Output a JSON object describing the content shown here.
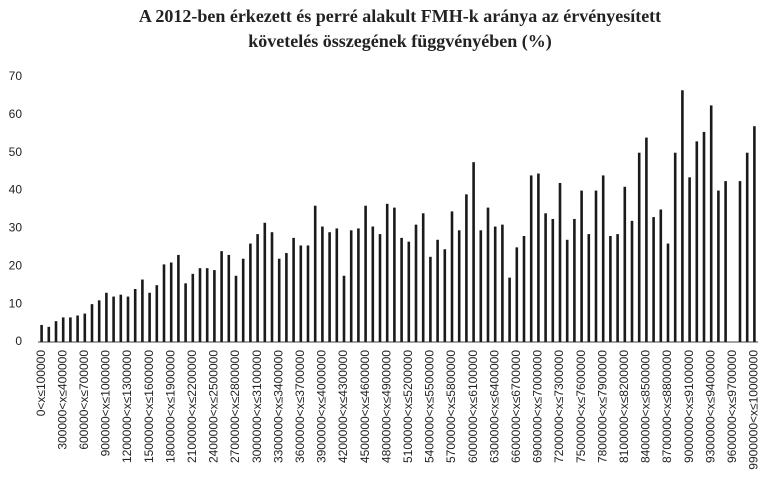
{
  "chart_data": {
    "type": "bar",
    "title": [
      "A 2012-ben érkezett és perré alakult FMH-k aránya az érvényesített",
      "követelés összegének függvényében (%)"
    ],
    "categories": [
      "0<x≤100000",
      null,
      null,
      "300000<x≤400000",
      null,
      null,
      "600000<x≤700000",
      null,
      null,
      "900000<x≤1000000",
      null,
      null,
      "1200000<x≤1300000",
      null,
      null,
      "1500000<x≤1600000",
      null,
      null,
      "1800000<x≤1900000",
      null,
      null,
      "2100000<x≤2200000",
      null,
      null,
      "2400000<x≤2500000",
      null,
      null,
      "2700000<x≤2800000",
      null,
      null,
      "3000000<x≤3100000",
      null,
      null,
      "3300000<x≤3400000",
      null,
      null,
      "3600000<x≤3700000",
      null,
      null,
      "3900000<x≤4000000",
      null,
      null,
      "4200000<x≤4300000",
      null,
      null,
      "4500000<x≤4600000",
      null,
      null,
      "4800000<x≤4900000",
      null,
      null,
      "5100000<x≤5200000",
      null,
      null,
      "5400000<x≤5500000",
      null,
      null,
      "5700000<x≤5800000",
      null,
      null,
      "6000000<x≤6100000",
      null,
      null,
      "6300000<x≤6400000",
      null,
      null,
      "6600000<x≤6700000",
      null,
      null,
      "6900000<x≤7000000",
      null,
      null,
      "7200000<x≤7300000",
      null,
      null,
      "7500000<x≤7600000",
      null,
      null,
      "7800000<x≤7900000",
      null,
      null,
      "8100000<x≤8200000",
      null,
      null,
      "8400000<x≤8500000",
      null,
      null,
      "8700000<x≤8800000",
      null,
      null,
      "9000000<x≤9100000",
      null,
      null,
      "9300000<x≤9400000",
      null,
      null,
      "9600000<x≤9700000",
      null,
      null,
      "9900000<x≤10000000"
    ],
    "values": [
      4.5,
      4,
      5.5,
      6.5,
      6.5,
      7,
      7.5,
      10,
      11,
      13,
      12,
      12.5,
      12,
      14,
      16.5,
      13,
      15,
      20.5,
      21,
      23,
      15.5,
      18,
      19.5,
      19.5,
      19,
      24,
      23,
      17.5,
      22,
      26,
      28.5,
      31.5,
      29,
      22,
      23.5,
      27.5,
      25.5,
      25.5,
      36,
      30.5,
      29,
      30,
      17.5,
      29.5,
      30,
      36,
      30.5,
      28.5,
      36.5,
      35.5,
      27.5,
      26.5,
      31,
      34,
      22.5,
      27,
      24.5,
      34.5,
      29.5,
      39,
      47.5,
      29.5,
      35.5,
      30.5,
      31,
      17,
      25,
      28,
      44,
      44.5,
      34,
      32.5,
      42,
      27,
      32.5,
      40,
      28.5,
      40,
      44,
      28,
      28.5,
      41,
      32,
      50,
      54,
      33,
      35,
      26,
      50,
      66.5,
      43.5,
      53,
      55.5,
      62.5,
      40,
      42.5,
      0,
      42.5,
      50,
      57
    ],
    "color": "#1a1a1a",
    "ylim": [
      0,
      70
    ],
    "yticks": [
      0,
      10,
      20,
      30,
      40,
      50,
      60,
      70
    ],
    "grid": false
  }
}
